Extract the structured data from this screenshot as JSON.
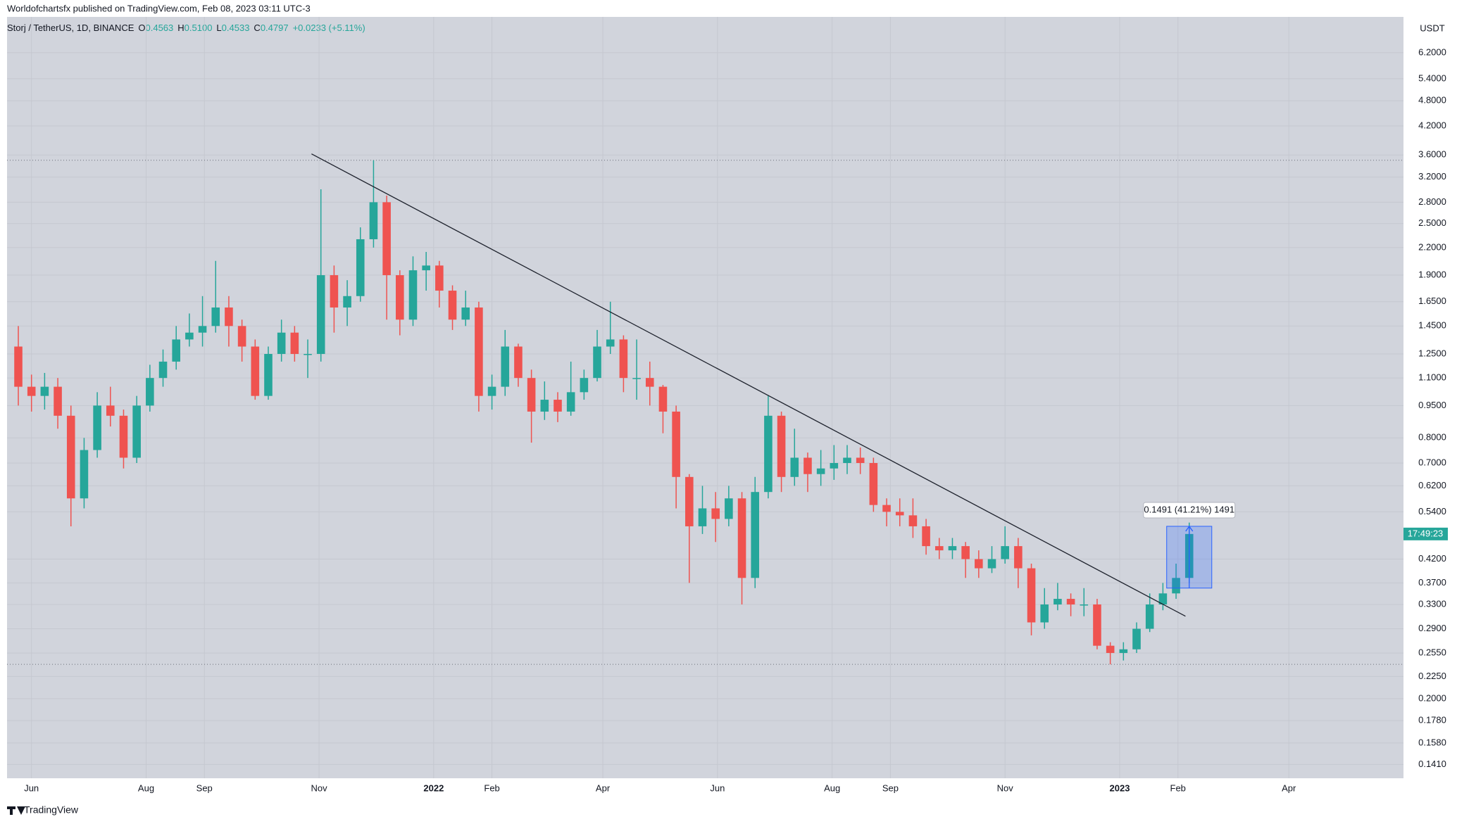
{
  "header": {
    "publisher": "Worldofchartsfx published on TradingView.com, Feb 08, 2023 03:11 UTC-3",
    "symbol": "Storj / TetherUS, 1D, BINANCE",
    "ohlc": [
      {
        "key": "O",
        "value": "0.4563"
      },
      {
        "key": "H",
        "value": "0.5100"
      },
      {
        "key": "L",
        "value": "0.4533"
      },
      {
        "key": "C",
        "value": "0.4797"
      }
    ],
    "change": "+0.0233 (+5.11%)"
  },
  "footer": {
    "brand": "TradingView"
  },
  "chart_data": {
    "type": "candlestick",
    "y_axis_unit": "USDT",
    "log_scale": true,
    "grid": true,
    "up_color": "#26a69a",
    "down_color": "#ef5350",
    "xlim": [
      -227,
      516
    ],
    "xticks": [
      {
        "value": -214,
        "label": "Jun"
      },
      {
        "value": -153,
        "label": "Aug"
      },
      {
        "value": -122,
        "label": "Sep"
      },
      {
        "value": -61,
        "label": "Nov"
      },
      {
        "value": 0,
        "label": "2022"
      },
      {
        "value": 31,
        "label": "Feb"
      },
      {
        "value": 90,
        "label": "Apr"
      },
      {
        "value": 151,
        "label": "Jun"
      },
      {
        "value": 212,
        "label": "Aug"
      },
      {
        "value": 243,
        "label": "Sep"
      },
      {
        "value": 304,
        "label": "Nov"
      },
      {
        "value": 365,
        "label": "2023"
      },
      {
        "value": 396,
        "label": "Feb"
      },
      {
        "value": 455,
        "label": "Apr"
      }
    ],
    "ylim": [
      0.131,
      7.5
    ],
    "yticks": [
      {
        "value": 6.2,
        "label": "6.2000"
      },
      {
        "value": 5.4,
        "label": "5.4000"
      },
      {
        "value": 4.8,
        "label": "4.8000"
      },
      {
        "value": 4.2,
        "label": "4.2000"
      },
      {
        "value": 3.6,
        "label": "3.6000"
      },
      {
        "value": 3.2,
        "label": "3.2000"
      },
      {
        "value": 2.8,
        "label": "2.8000"
      },
      {
        "value": 2.5,
        "label": "2.5000"
      },
      {
        "value": 2.2,
        "label": "2.2000"
      },
      {
        "value": 1.9,
        "label": "1.9000"
      },
      {
        "value": 1.65,
        "label": "1.6500"
      },
      {
        "value": 1.45,
        "label": "1.4500"
      },
      {
        "value": 1.25,
        "label": "1.2500"
      },
      {
        "value": 1.1,
        "label": "1.1000"
      },
      {
        "value": 0.95,
        "label": "0.9500"
      },
      {
        "value": 0.8,
        "label": "0.8000"
      },
      {
        "value": 0.7,
        "label": "0.7000"
      },
      {
        "value": 0.62,
        "label": "0.6200"
      },
      {
        "value": 0.54,
        "label": "0.5400"
      },
      {
        "value": 0.42,
        "label": "0.4200"
      },
      {
        "value": 0.37,
        "label": "0.3700"
      },
      {
        "value": 0.33,
        "label": "0.3300"
      },
      {
        "value": 0.29,
        "label": "0.2900"
      },
      {
        "value": 0.255,
        "label": "0.2550"
      },
      {
        "value": 0.225,
        "label": "0.2250"
      },
      {
        "value": 0.2,
        "label": "0.2000"
      },
      {
        "value": 0.178,
        "label": "0.1780"
      },
      {
        "value": 0.158,
        "label": "0.1580"
      },
      {
        "value": 0.141,
        "label": "0.1410"
      }
    ],
    "x": [
      -221,
      -214,
      -207,
      -200,
      -193,
      -186,
      -179,
      -172,
      -165,
      -158,
      -151,
      -144,
      -137,
      -130,
      -123,
      -116,
      -109,
      -102,
      -95,
      -88,
      -81,
      -74,
      -67,
      -60,
      -53,
      -46,
      -39,
      -32,
      -25,
      -18,
      -11,
      -4,
      3,
      10,
      17,
      24,
      31,
      38,
      45,
      52,
      59,
      66,
      73,
      80,
      87,
      94,
      101,
      108,
      115,
      122,
      129,
      136,
      143,
      150,
      157,
      164,
      171,
      178,
      185,
      192,
      199,
      206,
      213,
      220,
      227,
      234,
      241,
      248,
      255,
      262,
      269,
      276,
      283,
      290,
      297,
      304,
      311,
      318,
      325,
      332,
      339,
      346,
      353,
      360,
      367,
      374,
      381,
      388,
      395,
      402
    ],
    "open": [
      1.3,
      1.05,
      1.0,
      1.05,
      0.9,
      0.58,
      0.75,
      0.95,
      0.9,
      0.72,
      0.95,
      1.1,
      1.2,
      1.35,
      1.4,
      1.45,
      1.6,
      1.45,
      1.3,
      1.0,
      1.25,
      1.4,
      1.25,
      1.25,
      1.9,
      1.6,
      1.7,
      2.3,
      2.8,
      1.9,
      1.5,
      1.95,
      2.0,
      1.75,
      1.5,
      1.6,
      1.0,
      1.05,
      1.3,
      1.1,
      0.92,
      0.98,
      0.92,
      1.02,
      1.1,
      1.3,
      1.35,
      1.1,
      1.1,
      1.05,
      0.92,
      0.65,
      0.5,
      0.55,
      0.52,
      0.58,
      0.38,
      0.6,
      0.9,
      0.65,
      0.72,
      0.66,
      0.68,
      0.7,
      0.72,
      0.7,
      0.56,
      0.54,
      0.53,
      0.5,
      0.45,
      0.44,
      0.45,
      0.42,
      0.4,
      0.42,
      0.45,
      0.4,
      0.3,
      0.33,
      0.34,
      0.33,
      0.33,
      0.265,
      0.255,
      0.26,
      0.29,
      0.33,
      0.35,
      0.38
    ],
    "high": [
      1.45,
      1.12,
      1.13,
      1.1,
      0.95,
      0.8,
      1.02,
      1.05,
      0.93,
      1.0,
      1.18,
      1.28,
      1.45,
      1.55,
      1.7,
      2.05,
      1.7,
      1.5,
      1.35,
      1.3,
      1.5,
      1.45,
      1.35,
      3.0,
      2.0,
      1.85,
      2.45,
      3.5,
      2.9,
      1.95,
      2.1,
      2.15,
      2.05,
      1.8,
      1.75,
      1.65,
      1.12,
      1.42,
      1.32,
      1.15,
      1.08,
      1.02,
      1.2,
      1.15,
      1.42,
      1.65,
      1.38,
      1.35,
      1.2,
      1.06,
      0.95,
      0.66,
      0.62,
      0.6,
      0.62,
      0.6,
      0.65,
      1.0,
      0.92,
      0.84,
      0.74,
      0.75,
      0.77,
      0.77,
      0.76,
      0.72,
      0.58,
      0.58,
      0.58,
      0.52,
      0.47,
      0.47,
      0.46,
      0.44,
      0.45,
      0.5,
      0.47,
      0.41,
      0.36,
      0.37,
      0.35,
      0.36,
      0.34,
      0.27,
      0.27,
      0.3,
      0.35,
      0.37,
      0.41,
      0.51
    ],
    "low": [
      0.95,
      0.92,
      0.93,
      0.84,
      0.5,
      0.55,
      0.72,
      0.85,
      0.68,
      0.7,
      0.92,
      1.05,
      1.15,
      1.3,
      1.3,
      1.4,
      1.3,
      1.2,
      0.98,
      0.98,
      1.2,
      1.2,
      1.1,
      1.2,
      1.4,
      1.45,
      1.65,
      2.2,
      1.5,
      1.38,
      1.45,
      1.75,
      1.6,
      1.42,
      1.45,
      0.92,
      0.93,
      1.0,
      1.05,
      0.78,
      0.88,
      0.87,
      0.9,
      0.98,
      1.08,
      1.25,
      1.02,
      0.98,
      0.95,
      0.82,
      0.55,
      0.37,
      0.48,
      0.46,
      0.5,
      0.33,
      0.36,
      0.58,
      0.6,
      0.62,
      0.6,
      0.62,
      0.64,
      0.66,
      0.66,
      0.54,
      0.5,
      0.5,
      0.47,
      0.43,
      0.42,
      0.42,
      0.38,
      0.38,
      0.39,
      0.41,
      0.36,
      0.28,
      0.29,
      0.32,
      0.31,
      0.31,
      0.26,
      0.24,
      0.245,
      0.255,
      0.285,
      0.32,
      0.34,
      0.37
    ],
    "close": [
      1.05,
      1.0,
      1.05,
      0.9,
      0.58,
      0.75,
      0.95,
      0.9,
      0.72,
      0.95,
      1.1,
      1.2,
      1.35,
      1.4,
      1.45,
      1.6,
      1.45,
      1.3,
      1.0,
      1.25,
      1.4,
      1.25,
      1.25,
      1.9,
      1.6,
      1.7,
      2.3,
      2.8,
      1.9,
      1.5,
      1.95,
      2.0,
      1.75,
      1.5,
      1.6,
      1.0,
      1.05,
      1.3,
      1.1,
      0.92,
      0.98,
      0.92,
      1.02,
      1.1,
      1.3,
      1.35,
      1.1,
      1.1,
      1.05,
      0.92,
      0.65,
      0.5,
      0.55,
      0.52,
      0.58,
      0.38,
      0.6,
      0.9,
      0.65,
      0.72,
      0.66,
      0.68,
      0.7,
      0.72,
      0.7,
      0.56,
      0.54,
      0.53,
      0.5,
      0.45,
      0.44,
      0.45,
      0.42,
      0.4,
      0.42,
      0.45,
      0.4,
      0.3,
      0.33,
      0.34,
      0.33,
      0.33,
      0.265,
      0.255,
      0.26,
      0.29,
      0.33,
      0.35,
      0.38,
      0.48
    ],
    "trendline": {
      "x": [
        -65,
        400
      ],
      "y": [
        3.62,
        0.31
      ]
    },
    "hlines": [
      3.5,
      0.24
    ],
    "measure": {
      "x": [
        390,
        414
      ],
      "y": [
        0.36,
        0.5
      ],
      "label": "0.1491 (41.21%) 1491"
    },
    "countdown": "17:49:23"
  }
}
